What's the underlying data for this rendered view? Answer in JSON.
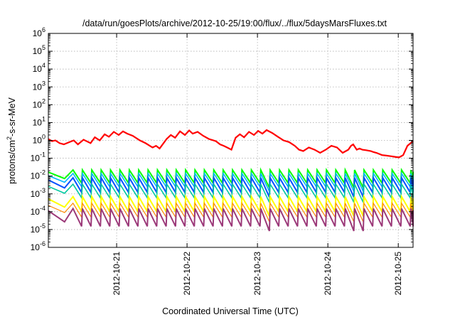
{
  "chart_data": {
    "type": "line",
    "title": "/data/run/goesPlots/archive/2012-10-25/19:00/flux/../flux/5daysMarsFluxes.txt",
    "xlabel": "Coordinated Universal Time (UTC)",
    "ylabel_prefix": "protons/cm",
    "ylabel_sup": "2",
    "ylabel_suffix": "-s-sr-MeV",
    "yscale": "log",
    "ylim": [
      1e-06,
      1000000.0
    ],
    "xlim": [
      0,
      5.18
    ],
    "grid": true,
    "legend": "none",
    "y_ticks": [
      {
        "value": 1e-06,
        "base": "10",
        "exp": "-6"
      },
      {
        "value": 1e-05,
        "base": "10",
        "exp": "-5"
      },
      {
        "value": 0.0001,
        "base": "10",
        "exp": "-4"
      },
      {
        "value": 0.001,
        "base": "10",
        "exp": "-3"
      },
      {
        "value": 0.01,
        "base": "10",
        "exp": "-2"
      },
      {
        "value": 0.1,
        "base": "10",
        "exp": "-1"
      },
      {
        "value": 1,
        "base": "10",
        "exp": "0"
      },
      {
        "value": 10.0,
        "base": "10",
        "exp": "1"
      },
      {
        "value": 100.0,
        "base": "10",
        "exp": "2"
      },
      {
        "value": 1000.0,
        "base": "10",
        "exp": "3"
      },
      {
        "value": 10000.0,
        "base": "10",
        "exp": "4"
      },
      {
        "value": 100000.0,
        "base": "10",
        "exp": "5"
      },
      {
        "value": 1000000.0,
        "base": "10",
        "exp": "6"
      }
    ],
    "x_ticks": [
      {
        "value": 0.97,
        "label": "2012-10-21"
      },
      {
        "value": 1.97,
        "label": "2012-10-22"
      },
      {
        "value": 2.97,
        "label": "2012-10-23"
      },
      {
        "value": 3.97,
        "label": "2012-10-24"
      },
      {
        "value": 4.97,
        "label": "2012-10-25"
      }
    ],
    "series": [
      {
        "color": "#ff0000",
        "width": 2.2,
        "x": [
          0,
          0.05,
          0.1,
          0.16,
          0.22,
          0.3,
          0.36,
          0.42,
          0.5,
          0.6,
          0.66,
          0.73,
          0.8,
          0.86,
          0.93,
          1.0,
          1.06,
          1.12,
          1.2,
          1.3,
          1.38,
          1.48,
          1.53,
          1.58,
          1.68,
          1.74,
          1.8,
          1.87,
          1.94,
          2.0,
          2.05,
          2.12,
          2.2,
          2.28,
          2.38,
          2.44,
          2.49,
          2.54,
          2.6,
          2.66,
          2.72,
          2.78,
          2.85,
          2.92,
          2.98,
          3.04,
          3.1,
          3.18,
          3.26,
          3.34,
          3.42,
          3.5,
          3.56,
          3.62,
          3.7,
          3.78,
          3.86,
          3.94,
          4.02,
          4.1,
          4.18,
          4.26,
          4.3,
          4.33,
          4.38,
          4.42,
          4.46,
          4.52,
          4.58,
          4.62,
          4.66,
          4.74,
          4.8,
          4.86,
          4.92,
          4.98,
          5.04,
          5.1,
          5.18
        ],
        "y": [
          1.2,
          0.9,
          1.0,
          0.7,
          0.6,
          0.8,
          1.0,
          0.6,
          1.1,
          0.7,
          1.5,
          1.0,
          2.2,
          1.6,
          3.0,
          2.0,
          3.2,
          2.4,
          1.8,
          1.0,
          0.7,
          0.4,
          0.5,
          0.35,
          1.2,
          2.0,
          1.4,
          3.2,
          2.0,
          3.6,
          2.4,
          3.0,
          1.8,
          1.2,
          0.9,
          0.6,
          0.5,
          0.4,
          0.3,
          1.4,
          2.2,
          1.5,
          3.0,
          2.0,
          3.4,
          2.4,
          3.8,
          2.6,
          1.6,
          1.0,
          0.8,
          0.5,
          0.3,
          0.25,
          0.4,
          0.3,
          0.2,
          0.3,
          0.5,
          0.4,
          0.2,
          0.3,
          0.5,
          0.6,
          0.3,
          0.35,
          0.3,
          0.28,
          0.25,
          0.22,
          0.2,
          0.15,
          0.14,
          0.13,
          0.12,
          0.11,
          0.15,
          0.5,
          0.9
        ]
      },
      {
        "color": "#00ff00",
        "width": 2,
        "peak": 0.022,
        "trough": 0.004
      },
      {
        "color": "#00b4ff",
        "width": 1.6,
        "peak": 0.014,
        "trough": 0.0025
      },
      {
        "color": "#0050ff",
        "width": 2,
        "peak": 0.008,
        "trough": 0.0012
      },
      {
        "color": "#00c8a0",
        "width": 1.6,
        "peak": 0.0035,
        "trough": 0.0006
      },
      {
        "color": "#ffff00",
        "width": 2,
        "peak": 0.0007,
        "trough": 0.0001
      },
      {
        "color": "#ff8800",
        "width": 1.2,
        "peak": 0.0003,
        "trough": 5e-05
      },
      {
        "color": "#9b3878",
        "width": 2,
        "peak": 0.00015,
        "trough": 1.5e-05
      }
    ],
    "spikes": {
      "count": 37,
      "x_start": 0.35,
      "x_end": 5.15,
      "dip_x": [
        3.0,
        4.28,
        4.34
      ]
    }
  }
}
